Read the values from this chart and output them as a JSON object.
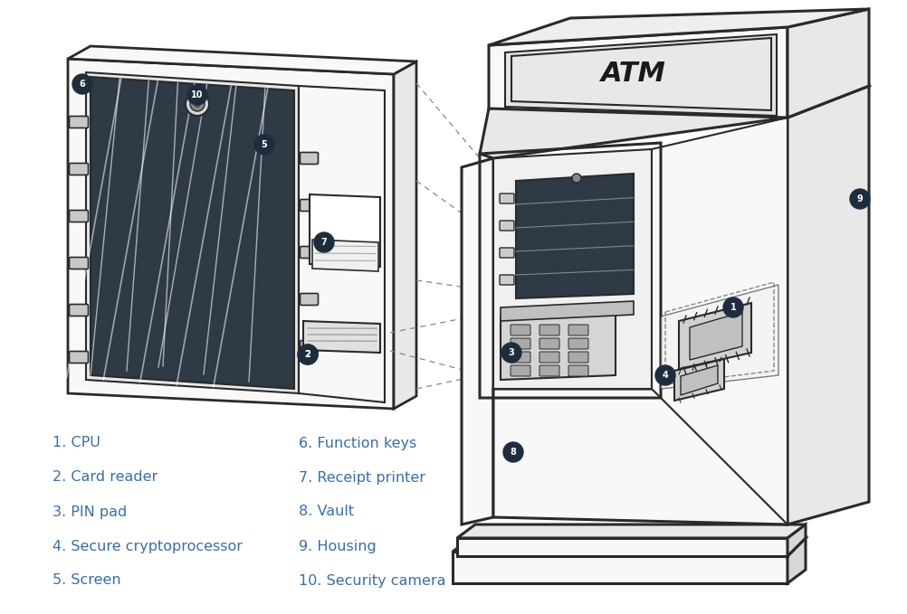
{
  "background_color": "#ffffff",
  "line_color": "#2a2a2a",
  "label_circle_color": "#1e2d3d",
  "label_text_color": "#ffffff",
  "text_color": "#3a6ea5",
  "legend_items_col1": [
    "1. CPU",
    "2. Card reader",
    "3. PIN pad",
    "4. Secure cryptoprocessor",
    "5. Screen"
  ],
  "legend_items_col2": [
    "6. Function keys",
    "7. Receipt printer",
    "8. Vault",
    "9. Housing",
    "10. Security camera"
  ],
  "legend_fontsize": 11.5,
  "figsize": [
    10.03,
    6.79
  ],
  "dpi": 100,
  "screen_dark": "#2e3a46",
  "panel_light": "#f8f8f8",
  "panel_mid": "#e8e8e8",
  "panel_dark": "#d8d8d8"
}
